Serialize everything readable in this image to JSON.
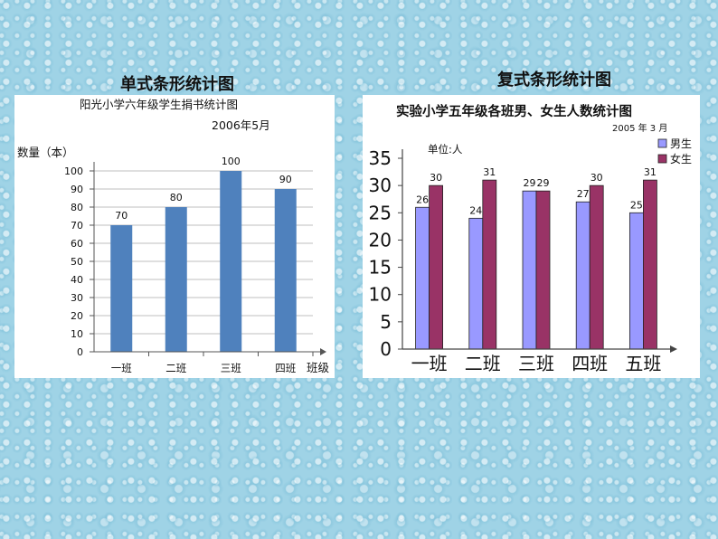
{
  "captions": {
    "left": "单式条形统计图",
    "right": "复式条形统计图"
  },
  "colors": {
    "single_bar": "#4f81bd",
    "boys": "#9999ff",
    "girls": "#993366"
  },
  "chart_data": [
    {
      "type": "bar",
      "title": "阳光小学六年级学生捐书统计图",
      "subtitle": "2006年5月",
      "ylabel": "数量（本）",
      "xlabel": "班级",
      "categories": [
        "一班",
        "二班",
        "三班",
        "四班"
      ],
      "values": [
        70,
        80,
        100,
        90
      ],
      "data_labels": [
        "70",
        "80",
        "100",
        "90"
      ],
      "ylim": [
        0,
        100
      ],
      "yticks": [
        "0",
        "10",
        "20",
        "30",
        "40",
        "50",
        "60",
        "70",
        "80",
        "90",
        "100"
      ],
      "grid": true,
      "legend": "none"
    },
    {
      "type": "bar",
      "title": "实验小学五年级各班男、女生人数统计图",
      "subtitle": "2005 年 3 月",
      "unit_label": "单位:人",
      "categories": [
        "一班",
        "二班",
        "三班",
        "四班",
        "五班"
      ],
      "series": [
        {
          "name": "男生",
          "values": [
            26,
            24,
            29,
            27,
            25
          ]
        },
        {
          "name": "女生",
          "values": [
            30,
            31,
            29,
            30,
            31
          ]
        }
      ],
      "ylim": [
        0,
        35
      ],
      "yticks": [
        "0",
        "5",
        "10",
        "15",
        "20",
        "25",
        "30",
        "35"
      ],
      "grid": false,
      "legend": "top-right"
    }
  ]
}
